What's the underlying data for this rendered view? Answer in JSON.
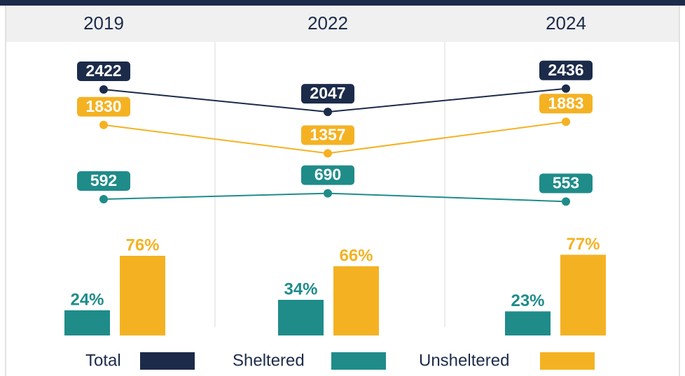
{
  "chart_data": [
    {
      "type": "line",
      "categories": [
        "2019",
        "2022",
        "2024"
      ],
      "series": [
        {
          "name": "Total",
          "color": "#1c2b4a",
          "values": [
            2422,
            2047,
            2436
          ]
        },
        {
          "name": "Sheltered",
          "color": "#1f8c8a",
          "values": [
            592,
            690,
            553
          ]
        },
        {
          "name": "Unsheltered",
          "color": "#f4b223",
          "values": [
            1830,
            1357,
            1883
          ]
        }
      ],
      "ylim": [
        0,
        3000
      ]
    },
    {
      "type": "bar",
      "series": [
        {
          "color": "#1f8c8a",
          "values": [
            24,
            34,
            23
          ],
          "value_labels": [
            "24%",
            "34%",
            "23%"
          ]
        },
        {
          "color": "#f4b223",
          "values": [
            76,
            66,
            77
          ],
          "value_labels": [
            "76%",
            "66%",
            "77%"
          ]
        }
      ],
      "ylim": [
        0,
        100
      ]
    }
  ]
}
